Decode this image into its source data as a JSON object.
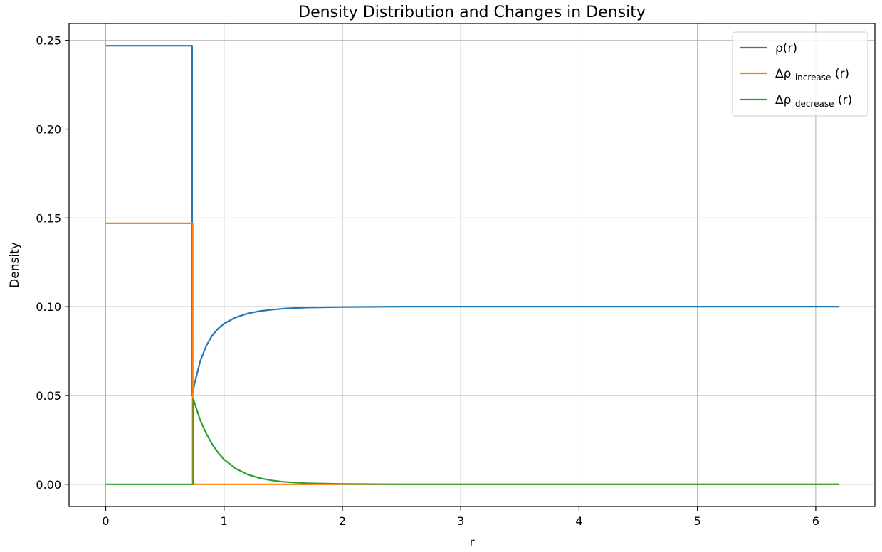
{
  "chart_data": {
    "type": "line",
    "title": "Density Distribution and Changes in Density",
    "xlabel": "r",
    "ylabel": "Density",
    "xlim": [
      -0.31,
      6.5
    ],
    "ylim": [
      -0.0125,
      0.2595
    ],
    "grid": true,
    "legend_position": "top-right",
    "x_ticks": [
      0,
      1,
      2,
      3,
      4,
      5,
      6
    ],
    "y_ticks": [
      0.0,
      0.05,
      0.1,
      0.15,
      0.2,
      0.25
    ],
    "x_tick_labels": [
      "0",
      "1",
      "2",
      "3",
      "4",
      "5",
      "6"
    ],
    "y_tick_labels": [
      "0.00",
      "0.05",
      "0.10",
      "0.15",
      "0.20",
      "0.25"
    ],
    "series": [
      {
        "name": "ρ(r)",
        "legend_main": "ρ(r)",
        "legend_sub": "",
        "legend_tail": "",
        "color": "#1f77b4",
        "points": [
          [
            0,
            0.247
          ],
          [
            0.73,
            0.247
          ],
          [
            0.73,
            0.05
          ],
          [
            0.75,
            0.0565
          ],
          [
            0.8,
            0.0697
          ],
          [
            0.85,
            0.078
          ],
          [
            0.9,
            0.0838
          ],
          [
            0.95,
            0.0877
          ],
          [
            1.0,
            0.0905
          ],
          [
            1.1,
            0.094
          ],
          [
            1.2,
            0.0962
          ],
          [
            1.3,
            0.0975
          ],
          [
            1.4,
            0.0983
          ],
          [
            1.5,
            0.0989
          ],
          [
            1.7,
            0.0995
          ],
          [
            2.0,
            0.0998
          ],
          [
            2.5,
            0.1
          ],
          [
            3.0,
            0.1
          ],
          [
            4.0,
            0.1
          ],
          [
            5.0,
            0.1
          ],
          [
            6.2,
            0.1
          ]
        ]
      },
      {
        "name": "Δρincrease(r)",
        "legend_main": "Δρ",
        "legend_sub": "increase",
        "legend_tail": "(r)",
        "color": "#ff7f0e",
        "points": [
          [
            0,
            0.147
          ],
          [
            0.735,
            0.147
          ],
          [
            0.735,
            0.0
          ],
          [
            1.0,
            0.0
          ],
          [
            2.0,
            0.0
          ],
          [
            3.0,
            0.0
          ],
          [
            4.0,
            0.0
          ],
          [
            5.0,
            0.0
          ],
          [
            6.2,
            0.0
          ]
        ]
      },
      {
        "name": "Δρdecrease(r)",
        "legend_main": "Δρ",
        "legend_sub": "decrease",
        "legend_tail": "(r)",
        "color": "#2ca02c",
        "points": [
          [
            0,
            0.0
          ],
          [
            0.74,
            0.0
          ],
          [
            0.74,
            0.048
          ],
          [
            0.8,
            0.0359
          ],
          [
            0.85,
            0.0285
          ],
          [
            0.9,
            0.0225
          ],
          [
            0.95,
            0.0178
          ],
          [
            1.0,
            0.014
          ],
          [
            1.1,
            0.0088
          ],
          [
            1.2,
            0.0055
          ],
          [
            1.3,
            0.0035
          ],
          [
            1.4,
            0.0022
          ],
          [
            1.5,
            0.0014
          ],
          [
            1.7,
            0.0006
          ],
          [
            2.0,
            0.0002
          ],
          [
            2.5,
            0.0
          ],
          [
            3.0,
            0.0
          ],
          [
            4.0,
            0.0
          ],
          [
            5.0,
            0.0
          ],
          [
            6.2,
            0.0
          ]
        ]
      }
    ]
  }
}
